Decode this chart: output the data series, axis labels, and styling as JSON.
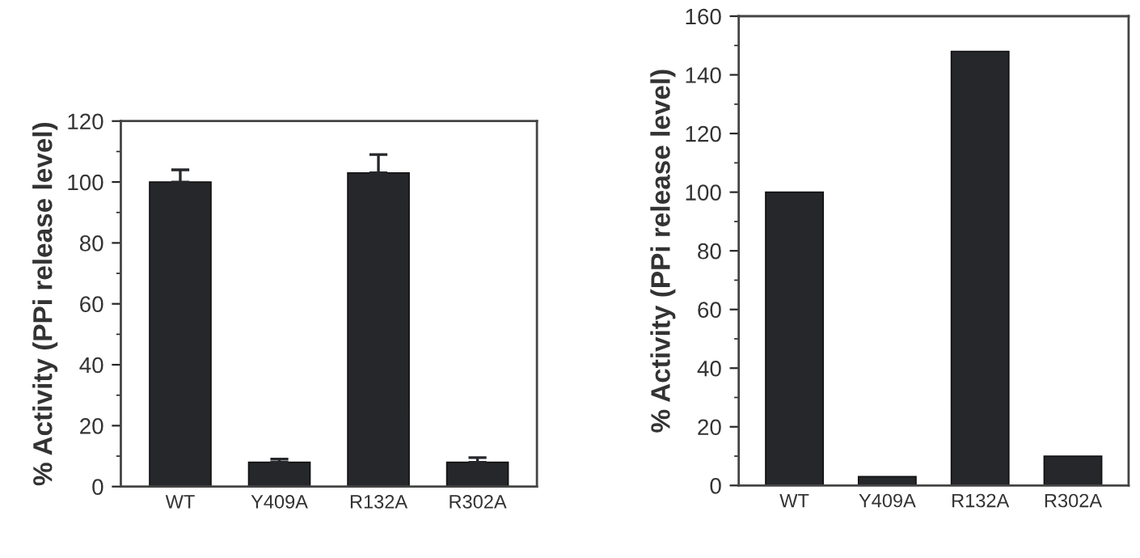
{
  "chart_data": [
    {
      "type": "bar",
      "ylabel": "% Activity (PPi release level)",
      "categories": [
        "WT",
        "Y409A",
        "R132A",
        "R302A"
      ],
      "values": [
        100,
        8,
        103,
        8
      ],
      "errors": [
        [
          100,
          104
        ],
        [
          8,
          9
        ],
        [
          103,
          109
        ],
        [
          8,
          9.5
        ]
      ],
      "colors": [
        "#26272b",
        "#26272b",
        "#26272b",
        "#26272b"
      ],
      "ylim": [
        0,
        120
      ],
      "yticks": [
        0,
        20,
        40,
        60,
        80,
        100,
        120
      ],
      "grid": false
    },
    {
      "type": "bar",
      "ylabel": "% Activity (PPi release level)",
      "categories": [
        "WT",
        "Y409A",
        "R132A",
        "R302A"
      ],
      "values": [
        100,
        3,
        148,
        10
      ],
      "colors": [
        "#26272b",
        "#26272b",
        "#26272b",
        "#26272b"
      ],
      "ylim": [
        0,
        160
      ],
      "yticks": [
        0,
        20,
        40,
        60,
        80,
        100,
        120,
        140,
        160
      ],
      "grid": false
    }
  ]
}
